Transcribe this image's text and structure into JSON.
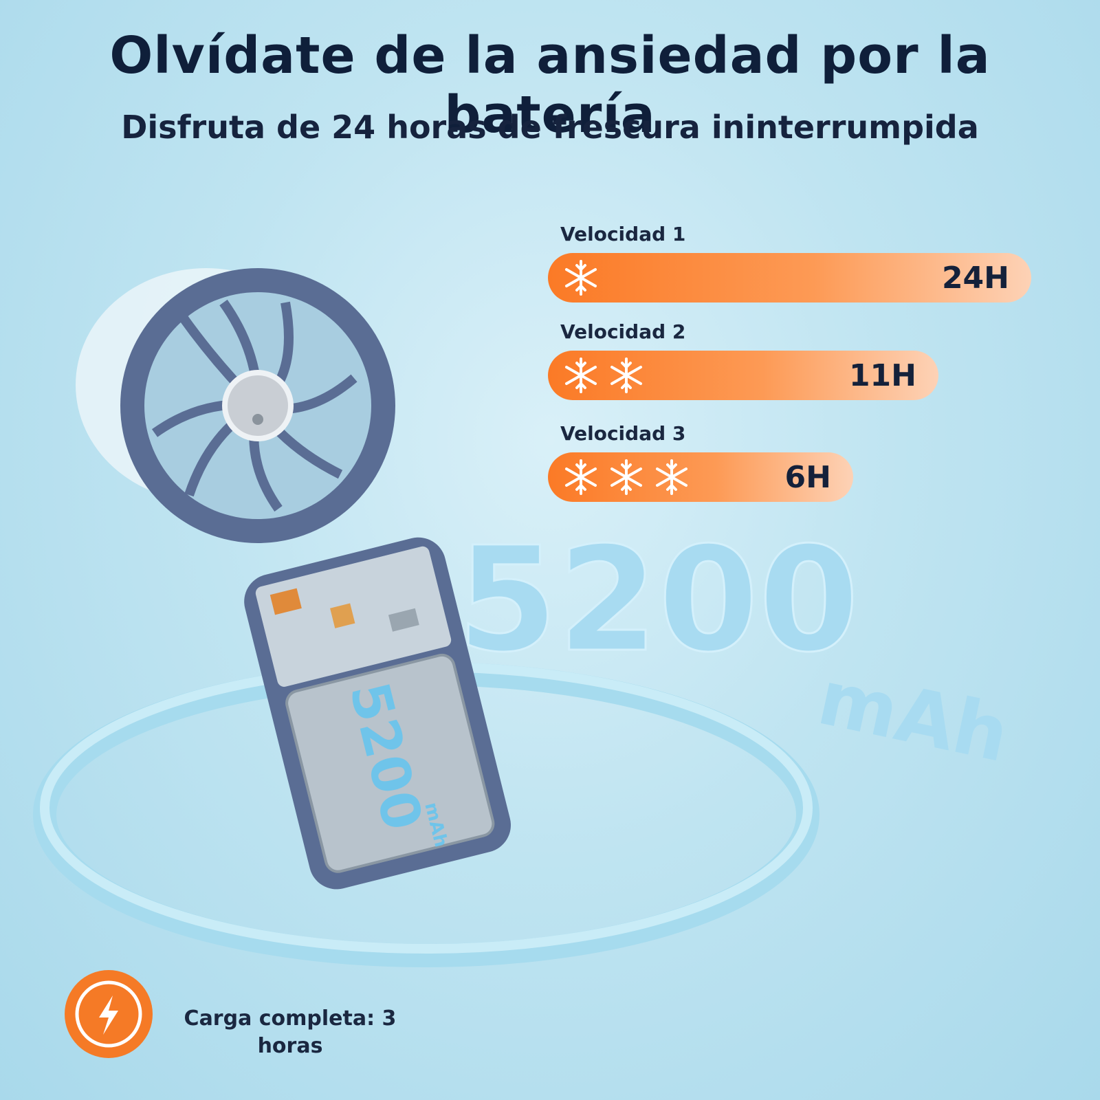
{
  "header": {
    "title": "Olvídate de la ansiedad por la batería",
    "subtitle": "Disfruta de 24 horas de frescura ininterrumpida"
  },
  "speeds": [
    {
      "label": "Velocidad 1",
      "duration": "24H"
    },
    {
      "label": "Velocidad 2",
      "duration": "11H"
    },
    {
      "label": "Velocidad 3",
      "duration": "6H"
    }
  ],
  "capacity": {
    "number": "5200",
    "unit": "mAh"
  },
  "charge": {
    "text": "Carga completa: 3 horas"
  }
}
